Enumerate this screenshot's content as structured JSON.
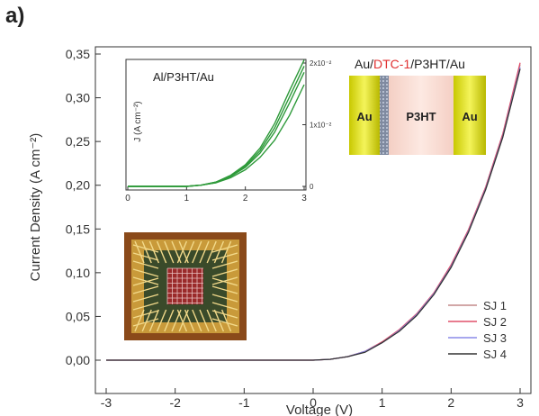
{
  "panel_label": "a)",
  "chart_data": {
    "type": "line",
    "xlabel": "Voltage (V)",
    "ylabel": "Current Density (A cm⁻²)",
    "xlim": [
      -3,
      3
    ],
    "ylim": [
      0,
      0.35
    ],
    "x_ticks": [
      "-3",
      "-2",
      "-1",
      "0",
      "1",
      "2",
      "3"
    ],
    "y_ticks": [
      "0,00",
      "0,05",
      "0,10",
      "0,15",
      "0,20",
      "0,25",
      "0,30",
      "0,35"
    ],
    "legend_position": "bottom-right",
    "x": [
      -3,
      -2,
      -1,
      0,
      0.25,
      0.5,
      0.75,
      1.0,
      1.25,
      1.5,
      1.75,
      2.0,
      2.25,
      2.5,
      2.75,
      3.0
    ],
    "series": [
      {
        "name": "SJ 1",
        "color": "#c48a8a",
        "values": [
          0,
          0,
          0,
          0,
          0.001,
          0.004,
          0.01,
          0.02,
          0.034,
          0.052,
          0.076,
          0.108,
          0.148,
          0.197,
          0.258,
          0.338
        ]
      },
      {
        "name": "SJ 2",
        "color": "#e0506a",
        "values": [
          0,
          0,
          0,
          0,
          0.001,
          0.004,
          0.01,
          0.021,
          0.035,
          0.053,
          0.077,
          0.109,
          0.149,
          0.198,
          0.259,
          0.34
        ]
      },
      {
        "name": "SJ 3",
        "color": "#8a8ae8",
        "values": [
          0,
          0,
          0,
          0,
          0.001,
          0.004,
          0.01,
          0.02,
          0.034,
          0.052,
          0.076,
          0.107,
          0.147,
          0.196,
          0.256,
          0.335
        ]
      },
      {
        "name": "SJ 4",
        "color": "#333333",
        "values": [
          0,
          0,
          0,
          0,
          0.001,
          0.004,
          0.009,
          0.02,
          0.033,
          0.051,
          0.075,
          0.106,
          0.146,
          0.195,
          0.255,
          0.333
        ]
      }
    ],
    "inset_chart": {
      "type": "line",
      "title": "Al/P3HT/Au",
      "ylabel": "J (A cm⁻²)",
      "xlim": [
        0,
        3
      ],
      "ylim": [
        0,
        0.02
      ],
      "x_ticks": [
        "0",
        "1",
        "2",
        "3"
      ],
      "y_ticks": [
        "0",
        "1x10⁻²",
        "2x10⁻²"
      ],
      "x": [
        0,
        0.5,
        1.0,
        1.25,
        1.5,
        1.75,
        2.0,
        2.25,
        2.5,
        2.75,
        3.0
      ],
      "series": [
        {
          "values": [
            0,
            0,
            0,
            0.0002,
            0.0006,
            0.0014,
            0.0027,
            0.0047,
            0.0075,
            0.0115,
            0.0165
          ]
        },
        {
          "values": [
            0,
            0,
            0,
            0.0002,
            0.0007,
            0.0017,
            0.0033,
            0.0058,
            0.0095,
            0.0145,
            0.0195
          ]
        },
        {
          "values": [
            0,
            0,
            0,
            0.0002,
            0.0007,
            0.0018,
            0.0035,
            0.0062,
            0.0102,
            0.0155,
            0.0205
          ]
        },
        {
          "values": [
            0,
            0,
            0,
            0.0002,
            0.0006,
            0.0016,
            0.0031,
            0.0054,
            0.0088,
            0.0135,
            0.0185
          ]
        }
      ],
      "color": "#2e9a3a"
    },
    "device_diagram": {
      "label_prefix": "Au/",
      "label_highlight": "DTC-1",
      "label_suffix": "/P3HT/Au",
      "highlight_color": "#e03030",
      "left_electrode": "Au",
      "middle_layer": "P3HT",
      "right_electrode": "Au"
    }
  }
}
